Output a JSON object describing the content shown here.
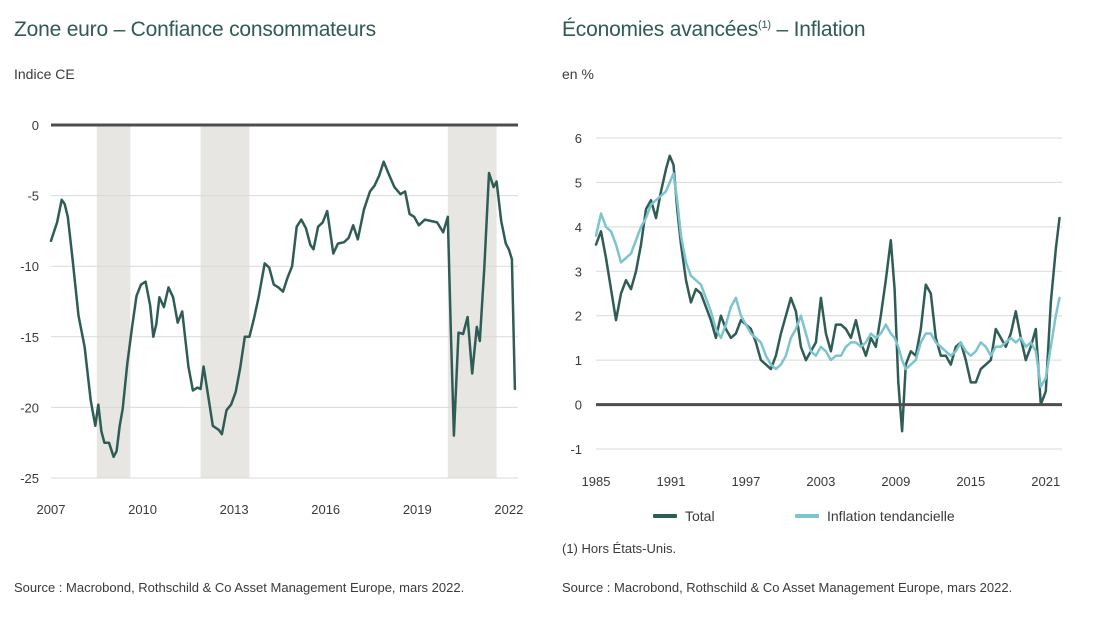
{
  "chart_data": [
    {
      "type": "line",
      "title": "Zone euro – Confiance consommateurs",
      "ylabel": "Indice CE",
      "xlim": [
        2007,
        2022.3
      ],
      "ylim": [
        -25,
        0
      ],
      "yticks": [
        "0",
        "-5",
        "-10",
        "-15",
        "-20",
        "-25"
      ],
      "yticks_values": [
        0,
        -5,
        -10,
        -15,
        -20,
        -25
      ],
      "xticks": [
        "2007",
        "2010",
        "2013",
        "2016",
        "2019",
        "2022"
      ],
      "xticks_values": [
        2007,
        2010,
        2013,
        2016,
        2019,
        2022
      ],
      "grid": true,
      "zero_line": true,
      "shaded_periods": [
        [
          2008.5,
          2009.6
        ],
        [
          2011.9,
          2013.5
        ],
        [
          2020.0,
          2021.6
        ]
      ],
      "colors": {
        "line": "#2f5d56",
        "shade": "#e8e6e2",
        "grid": "#d9d9d9",
        "zero": "#4d4d4d"
      },
      "series": [
        {
          "x": [
            2007.0,
            2007.2,
            2007.35,
            2007.45,
            2007.55,
            2007.7,
            2007.9,
            2008.1,
            2008.3,
            2008.45,
            2008.55,
            2008.65,
            2008.75,
            2008.9,
            2009.05,
            2009.15,
            2009.25,
            2009.35,
            2009.5,
            2009.65,
            2009.8,
            2009.95,
            2010.1,
            2010.25,
            2010.35,
            2010.45,
            2010.55,
            2010.7,
            2010.85,
            2011.0,
            2011.15,
            2011.3,
            2011.5,
            2011.65,
            2011.8,
            2011.9,
            2012.0,
            2012.15,
            2012.3,
            2012.5,
            2012.6,
            2012.75,
            2012.9,
            2013.05,
            2013.2,
            2013.35,
            2013.5,
            2013.65,
            2013.8,
            2014.0,
            2014.15,
            2014.3,
            2014.45,
            2014.6,
            2014.75,
            2014.9,
            2015.05,
            2015.2,
            2015.35,
            2015.5,
            2015.6,
            2015.75,
            2015.9,
            2016.05,
            2016.25,
            2016.4,
            2016.6,
            2016.75,
            2016.9,
            2017.05,
            2017.25,
            2017.45,
            2017.6,
            2017.75,
            2017.9,
            2018.05,
            2018.25,
            2018.45,
            2018.6,
            2018.75,
            2018.9,
            2019.05,
            2019.25,
            2019.45,
            2019.65,
            2019.85,
            2020.0,
            2020.1,
            2020.2,
            2020.35,
            2020.5,
            2020.65,
            2020.8,
            2020.95,
            2021.05,
            2021.2,
            2021.35,
            2021.5,
            2021.6,
            2021.75,
            2021.9,
            2022.0,
            2022.1,
            2022.2
          ],
          "y": [
            -8.2,
            -6.9,
            -5.3,
            -5.6,
            -6.5,
            -9.4,
            -13.5,
            -15.7,
            -19.5,
            -21.3,
            -19.8,
            -21.7,
            -22.5,
            -22.5,
            -23.5,
            -23.1,
            -21.3,
            -20.1,
            -16.9,
            -14.4,
            -12.1,
            -11.3,
            -11.1,
            -12.8,
            -15.0,
            -14.1,
            -12.2,
            -12.9,
            -11.5,
            -12.2,
            -14.0,
            -13.2,
            -17.1,
            -18.8,
            -18.6,
            -18.7,
            -17.1,
            -19.2,
            -21.3,
            -21.6,
            -21.9,
            -20.2,
            -19.8,
            -18.9,
            -17.2,
            -15.0,
            -15.0,
            -13.7,
            -12.2,
            -9.8,
            -10.1,
            -11.3,
            -11.5,
            -11.8,
            -10.8,
            -10.0,
            -7.2,
            -6.7,
            -7.3,
            -8.5,
            -8.8,
            -7.2,
            -6.9,
            -6.1,
            -9.1,
            -8.4,
            -8.3,
            -8.0,
            -7.1,
            -8.1,
            -6.0,
            -4.7,
            -4.3,
            -3.6,
            -2.6,
            -3.4,
            -4.4,
            -4.9,
            -4.7,
            -6.3,
            -6.5,
            -7.1,
            -6.7,
            -6.8,
            -6.9,
            -7.6,
            -6.5,
            -14.5,
            -22.0,
            -14.7,
            -14.8,
            -13.6,
            -17.6,
            -14.3,
            -15.3,
            -10.0,
            -3.4,
            -4.4,
            -4.0,
            -6.8,
            -8.4,
            -8.8,
            -9.5,
            -18.7
          ]
        }
      ]
    },
    {
      "type": "line",
      "title": "Économies avancées",
      "title_sup": "(1)",
      "title_suffix": " – Inflation",
      "ylabel": "en %",
      "xlim": [
        1985,
        2022.3
      ],
      "ylim": [
        -1,
        6
      ],
      "yticks": [
        "6",
        "5",
        "4",
        "3",
        "2",
        "1",
        "0",
        "-1"
      ],
      "yticks_values": [
        6,
        5,
        4,
        3,
        2,
        1,
        0,
        -1
      ],
      "xticks": [
        "1985",
        "1991",
        "1997",
        "2003",
        "2009",
        "2015",
        "2021"
      ],
      "xticks_values": [
        1985,
        1991,
        1997,
        2003,
        2009,
        2015,
        2021
      ],
      "grid": true,
      "zero_line": true,
      "legend_position": "bottom",
      "footnote": "(1) Hors États-Unis.",
      "colors": {
        "total": "#2f5d56",
        "trend": "#7ec4ce",
        "grid": "#d9d9d9",
        "zero": "#4d4d4d"
      },
      "series": [
        {
          "name": "Total",
          "x": [
            1985.0,
            1985.4,
            1985.8,
            1986.2,
            1986.6,
            1987.0,
            1987.4,
            1987.8,
            1988.2,
            1988.6,
            1989.0,
            1989.4,
            1989.8,
            1990.2,
            1990.6,
            1990.9,
            1991.2,
            1991.5,
            1991.8,
            1992.2,
            1992.6,
            1993.0,
            1993.4,
            1993.8,
            1994.2,
            1994.6,
            1995.0,
            1995.4,
            1995.8,
            1996.2,
            1996.6,
            1997.0,
            1997.4,
            1997.8,
            1998.2,
            1998.6,
            1999.0,
            1999.4,
            1999.8,
            2000.2,
            2000.6,
            2001.0,
            2001.4,
            2001.8,
            2002.2,
            2002.6,
            2003.0,
            2003.4,
            2003.8,
            2004.2,
            2004.6,
            2005.0,
            2005.4,
            2005.8,
            2006.2,
            2006.6,
            2007.0,
            2007.4,
            2007.8,
            2008.2,
            2008.6,
            2008.9,
            2009.2,
            2009.5,
            2009.8,
            2010.2,
            2010.6,
            2011.0,
            2011.4,
            2011.8,
            2012.2,
            2012.6,
            2013.0,
            2013.4,
            2013.8,
            2014.2,
            2014.6,
            2015.0,
            2015.4,
            2015.8,
            2016.2,
            2016.6,
            2017.0,
            2017.4,
            2017.8,
            2018.2,
            2018.6,
            2019.0,
            2019.4,
            2019.8,
            2020.2,
            2020.6,
            2021.0,
            2021.4,
            2021.8,
            2022.1
          ],
          "y": [
            3.6,
            3.9,
            3.3,
            2.6,
            1.9,
            2.5,
            2.8,
            2.6,
            3.0,
            3.6,
            4.4,
            4.6,
            4.2,
            4.8,
            5.3,
            5.6,
            5.4,
            4.4,
            3.6,
            2.8,
            2.3,
            2.6,
            2.5,
            2.2,
            1.9,
            1.5,
            2.0,
            1.7,
            1.5,
            1.6,
            1.9,
            1.8,
            1.7,
            1.4,
            1.0,
            0.9,
            0.8,
            1.1,
            1.6,
            2.0,
            2.4,
            2.1,
            1.3,
            1.0,
            1.2,
            1.4,
            2.4,
            1.6,
            1.2,
            1.8,
            1.8,
            1.7,
            1.5,
            1.9,
            1.4,
            1.1,
            1.5,
            1.3,
            2.0,
            2.8,
            3.7,
            2.6,
            0.5,
            -0.6,
            0.9,
            1.2,
            1.1,
            1.7,
            2.7,
            2.5,
            1.5,
            1.1,
            1.1,
            0.9,
            1.3,
            1.4,
            1.0,
            0.5,
            0.5,
            0.8,
            0.9,
            1.0,
            1.7,
            1.5,
            1.3,
            1.6,
            2.1,
            1.5,
            1.0,
            1.3,
            1.7,
            0.0,
            0.3,
            2.3,
            3.5,
            4.2
          ]
        },
        {
          "name": "Inflation tendancielle",
          "x": [
            1985.0,
            1985.4,
            1985.8,
            1986.2,
            1986.6,
            1987.0,
            1987.4,
            1987.8,
            1988.2,
            1988.6,
            1989.0,
            1989.4,
            1989.8,
            1990.2,
            1990.6,
            1990.9,
            1991.2,
            1991.5,
            1991.8,
            1992.2,
            1992.6,
            1993.0,
            1993.4,
            1993.8,
            1994.2,
            1994.6,
            1995.0,
            1995.4,
            1995.8,
            1996.2,
            1996.6,
            1997.0,
            1997.4,
            1997.8,
            1998.2,
            1998.6,
            1999.0,
            1999.4,
            1999.8,
            2000.2,
            2000.6,
            2001.0,
            2001.4,
            2001.8,
            2002.2,
            2002.6,
            2003.0,
            2003.4,
            2003.8,
            2004.2,
            2004.6,
            2005.0,
            2005.4,
            2005.8,
            2006.2,
            2006.6,
            2007.0,
            2007.4,
            2007.8,
            2008.2,
            2008.6,
            2008.9,
            2009.2,
            2009.5,
            2009.8,
            2010.2,
            2010.6,
            2011.0,
            2011.4,
            2011.8,
            2012.2,
            2012.6,
            2013.0,
            2013.4,
            2013.8,
            2014.2,
            2014.6,
            2015.0,
            2015.4,
            2015.8,
            2016.2,
            2016.6,
            2017.0,
            2017.4,
            2017.8,
            2018.2,
            2018.6,
            2019.0,
            2019.4,
            2019.8,
            2020.2,
            2020.6,
            2021.0,
            2021.4,
            2021.8,
            2022.1
          ],
          "y": [
            3.8,
            4.3,
            4.0,
            3.9,
            3.6,
            3.2,
            3.3,
            3.4,
            3.7,
            4.0,
            4.2,
            4.5,
            4.6,
            4.7,
            4.8,
            5.0,
            5.2,
            4.6,
            3.8,
            3.2,
            2.9,
            2.8,
            2.7,
            2.4,
            2.1,
            1.7,
            1.5,
            1.8,
            2.2,
            2.4,
            2.0,
            1.8,
            1.6,
            1.5,
            1.4,
            1.1,
            0.9,
            0.8,
            0.9,
            1.1,
            1.5,
            1.7,
            2.0,
            1.6,
            1.2,
            1.1,
            1.3,
            1.2,
            1.0,
            1.1,
            1.1,
            1.3,
            1.4,
            1.4,
            1.3,
            1.4,
            1.6,
            1.5,
            1.6,
            1.8,
            1.6,
            1.5,
            1.3,
            1.0,
            0.8,
            0.9,
            1.0,
            1.4,
            1.6,
            1.6,
            1.4,
            1.3,
            1.2,
            1.1,
            1.2,
            1.4,
            1.2,
            1.1,
            1.2,
            1.4,
            1.3,
            1.1,
            1.3,
            1.3,
            1.4,
            1.5,
            1.4,
            1.5,
            1.3,
            1.4,
            1.2,
            0.4,
            0.6,
            1.3,
            2.0,
            2.4
          ]
        }
      ]
    }
  ],
  "legend": {
    "total": "Total",
    "trend": "Inflation tendancielle"
  },
  "sources": {
    "left": "Source : Macrobond, Rothschild & Co Asset Management Europe, mars 2022.",
    "right": "Source : Macrobond, Rothschild & Co Asset Management Europe, mars 2022."
  }
}
